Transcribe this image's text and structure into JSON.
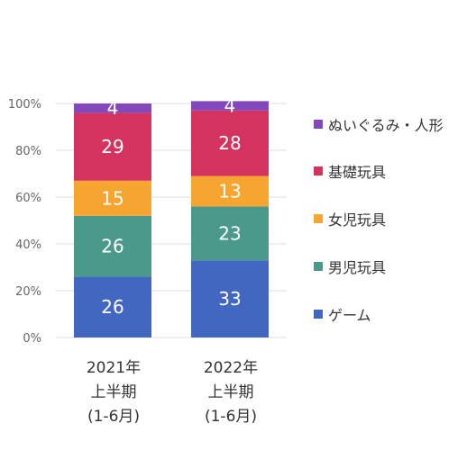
{
  "chart_data": {
    "type": "bar",
    "stacked": true,
    "percent": true,
    "categories": [
      [
        "2021年",
        "上半期",
        "(1-6月)"
      ],
      [
        "2022年",
        "上半期",
        "(1-6月)"
      ]
    ],
    "series": [
      {
        "name": "ゲーム",
        "values": [
          26,
          33
        ],
        "color": "#4267c0"
      },
      {
        "name": "男児玩具",
        "values": [
          26,
          23
        ],
        "color": "#4a9a8c"
      },
      {
        "name": "女児玩具",
        "values": [
          15,
          13
        ],
        "color": "#f7a531"
      },
      {
        "name": "基礎玩具",
        "values": [
          29,
          28
        ],
        "color": "#d4335f"
      },
      {
        "name": "ぬいぐるみ・人形",
        "values": [
          4,
          4
        ],
        "color": "#8348bb"
      }
    ],
    "yticks": [
      "0%",
      "20%",
      "40%",
      "60%",
      "80%",
      "100%"
    ],
    "ylim": [
      0,
      100
    ],
    "grid": true,
    "legend": "right"
  }
}
